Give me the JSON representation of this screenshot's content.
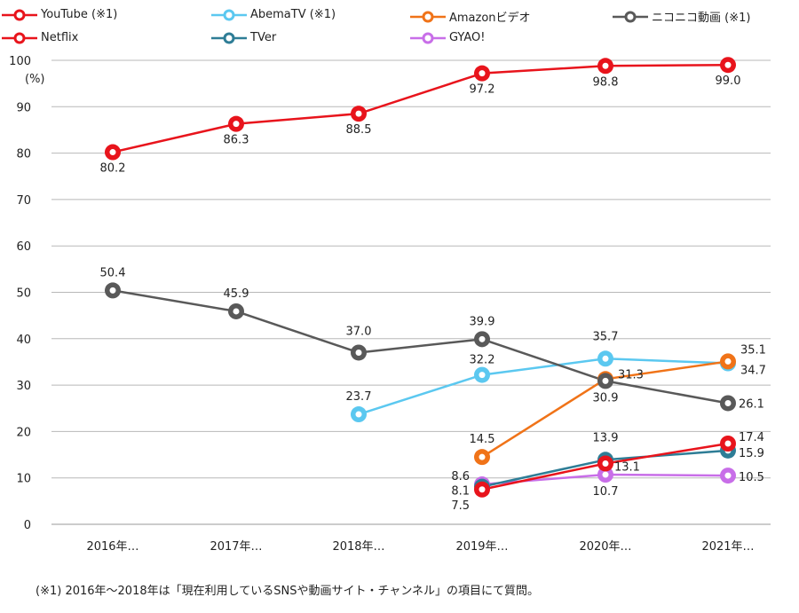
{
  "chart_data": {
    "type": "line",
    "categories": [
      "2016年…",
      "2017年…",
      "2018年…",
      "2019年…",
      "2020年…",
      "2021年…"
    ],
    "ylabel": "(%)",
    "ylim": [
      0,
      100
    ],
    "yticks": [
      0,
      10,
      20,
      30,
      40,
      50,
      60,
      70,
      80,
      90,
      100
    ],
    "grid": "horizontal",
    "legend_position": "top",
    "series": [
      {
        "name": "YouTube (※1)",
        "color": "#e8141c",
        "values": [
          80.2,
          86.3,
          88.5,
          97.2,
          98.8,
          99.0
        ]
      },
      {
        "name": "AbemaTV (※1)",
        "color": "#5bc8f0",
        "values": [
          null,
          null,
          23.7,
          32.2,
          35.7,
          34.7
        ]
      },
      {
        "name": "Amazonビデオ",
        "color": "#f07318",
        "values": [
          null,
          null,
          null,
          14.5,
          31.3,
          35.1
        ]
      },
      {
        "name": "ニコニコ動画 (※1)",
        "color": "#595959",
        "values": [
          50.4,
          45.9,
          37.0,
          39.9,
          30.9,
          26.1
        ]
      },
      {
        "name": "Netflix",
        "color": "#e8141c",
        "values": [
          null,
          null,
          null,
          7.5,
          13.1,
          17.4
        ]
      },
      {
        "name": "TVer",
        "color": "#2e7d96",
        "values": [
          null,
          null,
          null,
          8.1,
          13.9,
          15.9
        ]
      },
      {
        "name": "GYAO!",
        "color": "#c86ee8",
        "values": [
          null,
          null,
          null,
          8.6,
          10.7,
          10.5
        ]
      }
    ],
    "data_labels": [
      {
        "series": 0,
        "index": 0,
        "text": "80.2"
      },
      {
        "series": 0,
        "index": 1,
        "text": "86.3"
      },
      {
        "series": 0,
        "index": 2,
        "text": "88.5"
      },
      {
        "series": 0,
        "index": 3,
        "text": "97.2"
      },
      {
        "series": 0,
        "index": 4,
        "text": "98.8"
      },
      {
        "series": 0,
        "index": 5,
        "text": "99.0"
      },
      {
        "series": 1,
        "index": 2,
        "text": "23.7"
      },
      {
        "series": 1,
        "index": 3,
        "text": "32.2"
      },
      {
        "series": 1,
        "index": 4,
        "text": "35.7"
      },
      {
        "series": 1,
        "index": 5,
        "text": "34.7"
      },
      {
        "series": 2,
        "index": 3,
        "text": "14.5"
      },
      {
        "series": 2,
        "index": 4,
        "text": "31.3"
      },
      {
        "series": 2,
        "index": 5,
        "text": "35.1"
      },
      {
        "series": 3,
        "index": 0,
        "text": "50.4"
      },
      {
        "series": 3,
        "index": 1,
        "text": "45.9"
      },
      {
        "series": 3,
        "index": 2,
        "text": "37.0"
      },
      {
        "series": 3,
        "index": 3,
        "text": "39.9"
      },
      {
        "series": 3,
        "index": 4,
        "text": "30.9"
      },
      {
        "series": 3,
        "index": 5,
        "text": "26.1"
      },
      {
        "series": 4,
        "index": 3,
        "text": "7.5"
      },
      {
        "series": 4,
        "index": 4,
        "text": "13.1"
      },
      {
        "series": 4,
        "index": 5,
        "text": "17.4"
      },
      {
        "series": 5,
        "index": 3,
        "text": "8.1"
      },
      {
        "series": 5,
        "index": 4,
        "text": "13.9"
      },
      {
        "series": 5,
        "index": 5,
        "text": "15.9"
      },
      {
        "series": 6,
        "index": 3,
        "text": "8.6"
      },
      {
        "series": 6,
        "index": 4,
        "text": "10.7"
      },
      {
        "series": 6,
        "index": 5,
        "text": "10.5"
      }
    ]
  },
  "footnote": "(※1) 2016年～2018年は「現在利用しているSNSや動画サイト・チャンネル」の項目にて質問。"
}
